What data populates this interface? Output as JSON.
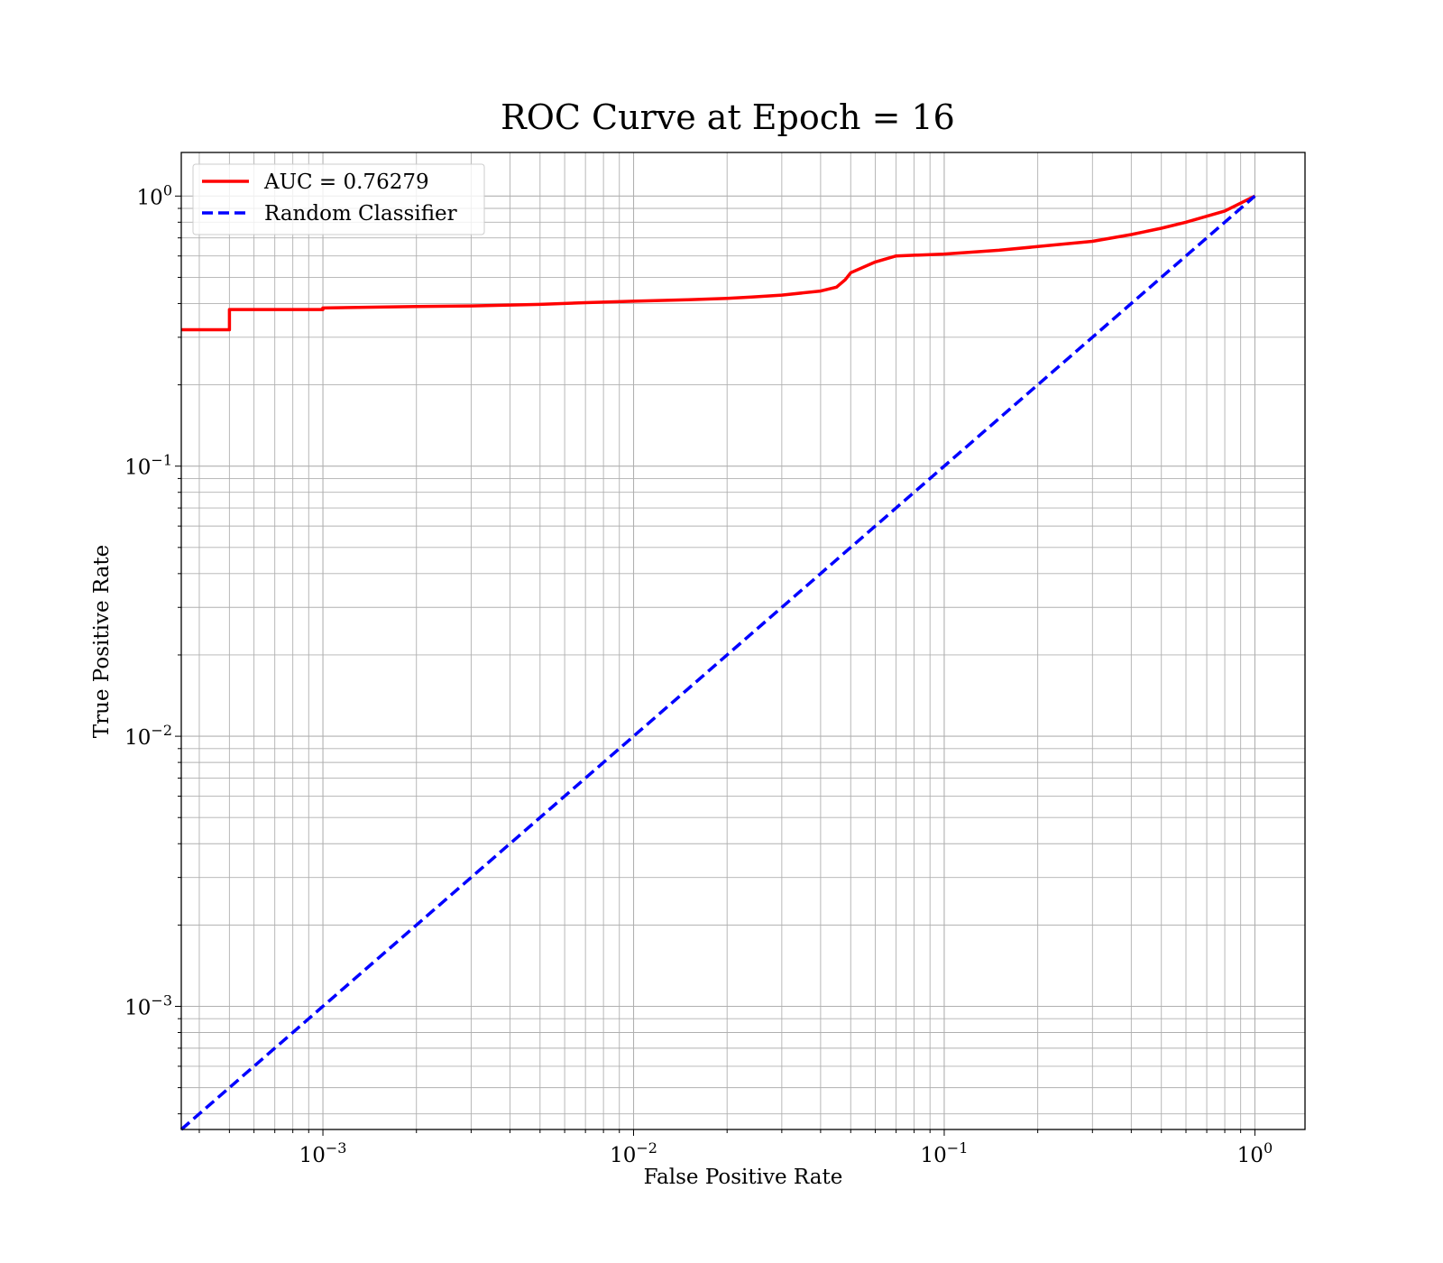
{
  "chart_data": {
    "type": "line",
    "title": "ROC Curve at Epoch = 16",
    "xlabel": "False Positive Rate",
    "ylabel": "True Positive Rate",
    "xscale": "log",
    "yscale": "log",
    "xlim": [
      0.00035,
      1.45
    ],
    "ylim": [
      0.00035,
      1.45
    ],
    "grid": true,
    "grid_minor": true,
    "legend_position": "top-left",
    "x_ticks": [
      {
        "base": "10",
        "exp": "−3",
        "value": 0.001
      },
      {
        "base": "10",
        "exp": "−2",
        "value": 0.01
      },
      {
        "base": "10",
        "exp": "−1",
        "value": 0.1
      },
      {
        "base": "10",
        "exp": "0",
        "value": 1
      }
    ],
    "y_ticks": [
      {
        "base": "10",
        "exp": "−3",
        "value": 0.001
      },
      {
        "base": "10",
        "exp": "−2",
        "value": 0.01
      },
      {
        "base": "10",
        "exp": "−1",
        "value": 0.1
      },
      {
        "base": "10",
        "exp": "0",
        "value": 1
      }
    ],
    "series": [
      {
        "name": "AUC = 0.76279",
        "color": "#ff0000",
        "style": "solid",
        "x": [
          0.00035,
          0.0005,
          0.0005,
          0.001,
          0.001,
          0.002,
          0.003,
          0.005,
          0.007,
          0.01,
          0.015,
          0.02,
          0.024,
          0.03,
          0.04,
          0.045,
          0.048,
          0.05,
          0.06,
          0.07,
          0.1,
          0.15,
          0.2,
          0.3,
          0.4,
          0.5,
          0.6,
          0.8,
          1.0
        ],
        "y": [
          0.32,
          0.32,
          0.38,
          0.38,
          0.385,
          0.39,
          0.392,
          0.397,
          0.403,
          0.408,
          0.413,
          0.418,
          0.423,
          0.43,
          0.445,
          0.46,
          0.49,
          0.52,
          0.57,
          0.6,
          0.61,
          0.63,
          0.65,
          0.68,
          0.72,
          0.76,
          0.8,
          0.88,
          1.0
        ]
      },
      {
        "name": "Random Classifier",
        "color": "#0000ff",
        "style": "dashed",
        "x": [
          0.00035,
          1.0
        ],
        "y": [
          0.00035,
          1.0
        ]
      }
    ]
  }
}
